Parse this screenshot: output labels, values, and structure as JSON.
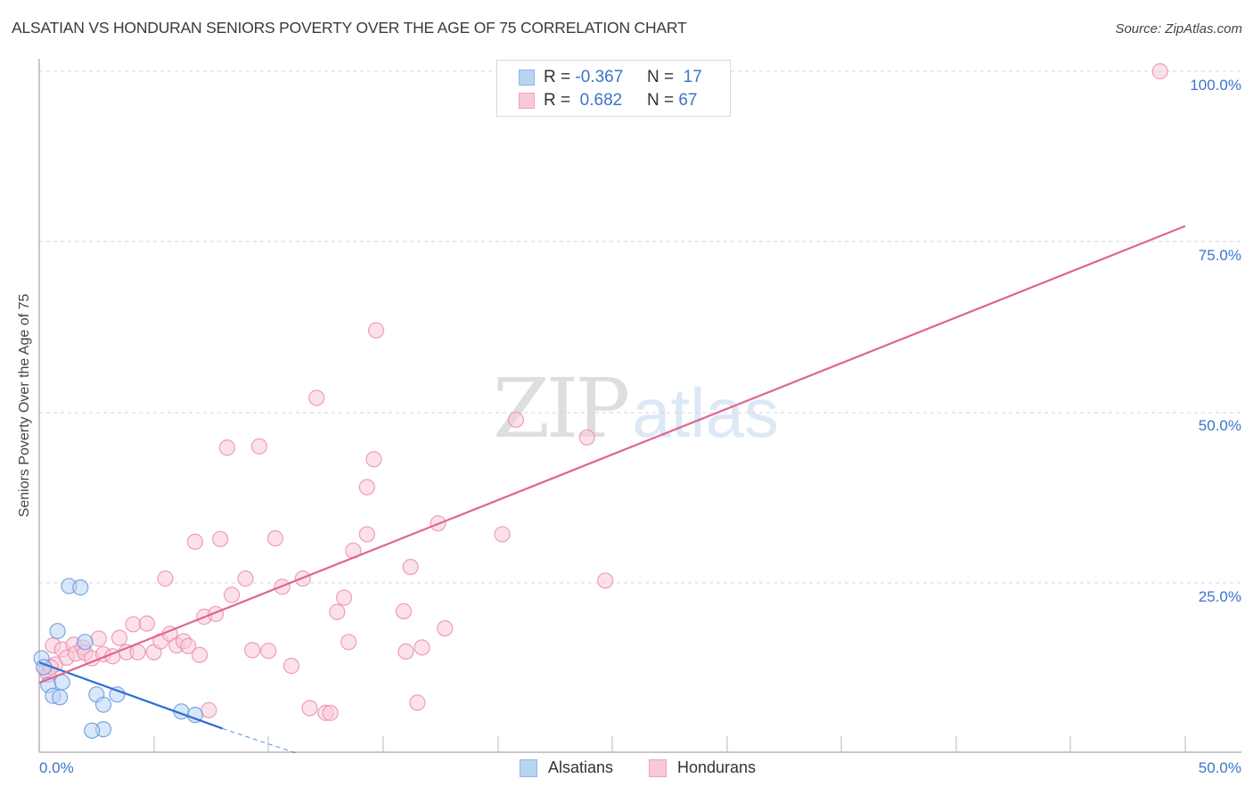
{
  "header": {
    "title": "ALSATIAN VS HONDURAN SENIORS POVERTY OVER THE AGE OF 75 CORRELATION CHART",
    "source": "Source: ZipAtlas.com"
  },
  "legend": {
    "rows": [
      {
        "r_label": "R =",
        "r_value": "-0.367",
        "n_label": "N =",
        "n_value": "17"
      },
      {
        "r_label": "R =",
        "r_value": " 0.682",
        "n_label": "N =",
        "n_value": "67"
      }
    ],
    "bottom": [
      {
        "label": "Alsatians"
      },
      {
        "label": "Hondurans"
      }
    ]
  },
  "watermark": {
    "zip": "ZIP",
    "atlas": "atlas"
  },
  "axes": {
    "ylabel": "Seniors Poverty Over the Age of 75",
    "y_ticks": [
      "100.0%",
      "75.0%",
      "50.0%",
      "25.0%"
    ],
    "x_ticks": [
      "0.0%",
      "50.0%"
    ]
  },
  "colors": {
    "alsatians_fill": "#b9d3f3",
    "alsatians_stroke": "#5b93dc",
    "alsatians_line": "#2b6fd4",
    "hondurans_fill": "#f9c9d8",
    "hondurans_stroke": "#e88aa8",
    "hondurans_line": "#e06490",
    "tick_text": "#3d74c9",
    "grid": "#d5d5d5"
  },
  "chart_data": {
    "type": "scatter",
    "title": "ALSATIAN VS HONDURAN SENIORS POVERTY OVER THE AGE OF 75 CORRELATION CHART",
    "xlabel": "",
    "ylabel": "Seniors Poverty Over the Age of 75",
    "xlim": [
      0,
      50
    ],
    "ylim": [
      0,
      100
    ],
    "x_tick_labels": [
      "0.0%",
      "50.0%"
    ],
    "y_tick_labels": [
      "25.0%",
      "50.0%",
      "75.0%",
      "100.0%"
    ],
    "grid": true,
    "legend_position": "top-center",
    "series": [
      {
        "name": "Alsatians",
        "R": -0.367,
        "N": 17,
        "points": [
          [
            0.1,
            13.9
          ],
          [
            0.2,
            12.6
          ],
          [
            0.4,
            10.0
          ],
          [
            0.6,
            8.4
          ],
          [
            0.8,
            17.9
          ],
          [
            0.9,
            8.2
          ],
          [
            1.0,
            10.4
          ],
          [
            1.3,
            24.5
          ],
          [
            1.8,
            24.3
          ],
          [
            2.0,
            16.3
          ],
          [
            2.5,
            8.6
          ],
          [
            2.8,
            7.1
          ],
          [
            3.4,
            8.6
          ],
          [
            2.8,
            3.5
          ],
          [
            2.3,
            3.3
          ],
          [
            6.2,
            6.1
          ],
          [
            6.8,
            5.6
          ]
        ],
        "trendline": {
          "x": [
            0,
            8.0
          ],
          "y": [
            13.3,
            3.6
          ],
          "dashed_extension_to": [
            11.2,
            0
          ]
        }
      },
      {
        "name": "Hondurans",
        "R": 0.682,
        "N": 67,
        "points": [
          [
            0.3,
            12.2
          ],
          [
            0.4,
            11.5
          ],
          [
            0.6,
            15.8
          ],
          [
            0.7,
            13.0
          ],
          [
            1.0,
            15.2
          ],
          [
            1.2,
            14.0
          ],
          [
            1.5,
            15.9
          ],
          [
            1.6,
            14.6
          ],
          [
            1.9,
            15.5
          ],
          [
            2.0,
            14.7
          ],
          [
            2.3,
            13.9
          ],
          [
            2.6,
            16.8
          ],
          [
            2.8,
            14.5
          ],
          [
            3.2,
            14.2
          ],
          [
            3.5,
            16.9
          ],
          [
            3.8,
            14.8
          ],
          [
            4.1,
            18.9
          ],
          [
            4.3,
            14.8
          ],
          [
            4.7,
            19.0
          ],
          [
            5.0,
            14.8
          ],
          [
            5.3,
            16.4
          ],
          [
            5.5,
            25.6
          ],
          [
            5.7,
            17.5
          ],
          [
            6.0,
            15.8
          ],
          [
            6.3,
            16.4
          ],
          [
            6.5,
            15.7
          ],
          [
            6.8,
            31.0
          ],
          [
            7.0,
            14.4
          ],
          [
            7.2,
            20.0
          ],
          [
            7.4,
            6.3
          ],
          [
            7.7,
            20.4
          ],
          [
            7.9,
            31.4
          ],
          [
            8.2,
            44.8
          ],
          [
            8.4,
            23.2
          ],
          [
            9.0,
            25.6
          ],
          [
            9.3,
            15.1
          ],
          [
            9.6,
            45.0
          ],
          [
            10.3,
            31.5
          ],
          [
            10.6,
            24.4
          ],
          [
            10.0,
            15.0
          ],
          [
            11.0,
            12.8
          ],
          [
            11.5,
            25.6
          ],
          [
            11.8,
            6.6
          ],
          [
            12.1,
            52.1
          ],
          [
            12.5,
            5.9
          ],
          [
            12.7,
            5.9
          ],
          [
            13.0,
            20.7
          ],
          [
            13.3,
            22.8
          ],
          [
            13.5,
            16.3
          ],
          [
            13.7,
            29.7
          ],
          [
            14.3,
            32.1
          ],
          [
            14.3,
            39.0
          ],
          [
            14.6,
            43.1
          ],
          [
            14.7,
            62.0
          ],
          [
            15.9,
            20.8
          ],
          [
            16.0,
            14.9
          ],
          [
            16.2,
            27.3
          ],
          [
            16.5,
            7.4
          ],
          [
            16.7,
            15.5
          ],
          [
            17.4,
            33.7
          ],
          [
            17.7,
            18.3
          ],
          [
            20.2,
            32.1
          ],
          [
            20.8,
            48.9
          ],
          [
            23.9,
            46.3
          ],
          [
            24.7,
            25.3
          ],
          [
            48.9,
            100.0
          ],
          [
            0.5,
            12.6
          ]
        ],
        "trendline": {
          "x": [
            0,
            50
          ],
          "y": [
            10.3,
            77.3
          ]
        }
      }
    ]
  }
}
